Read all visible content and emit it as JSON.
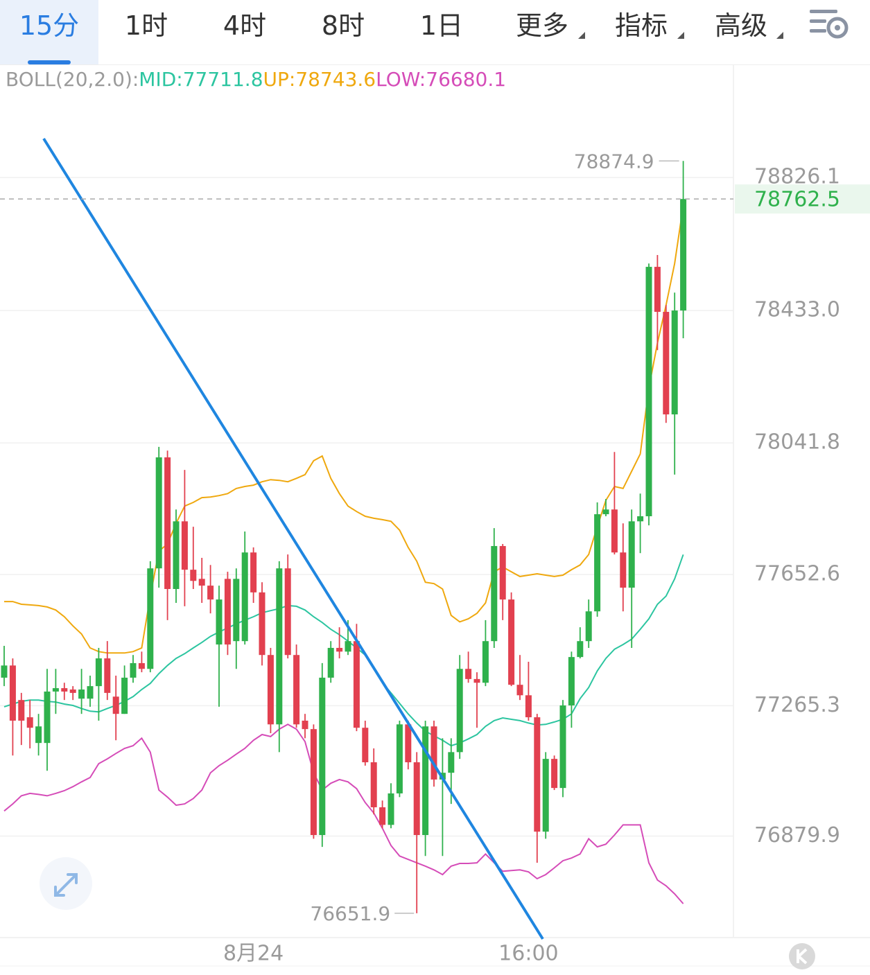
{
  "tabs": [
    "15分",
    "1时",
    "4时",
    "8时",
    "1日",
    "更多",
    "指标",
    "高级"
  ],
  "chart_data": {
    "type": "candlestick",
    "indicator_label": "BOLL(20,2.0):",
    "categories": [
      null,
      null,
      null,
      null,
      null,
      null,
      null,
      null,
      null,
      null,
      null,
      null,
      null,
      null,
      null,
      null,
      null,
      null,
      null,
      null,
      null,
      null,
      null,
      null,
      null,
      null,
      null,
      null,
      null,
      "8月24",
      null,
      null,
      null,
      null,
      null,
      null,
      null,
      null,
      null,
      null,
      null,
      null,
      null,
      null,
      null,
      null,
      null,
      null,
      null,
      null,
      null,
      null,
      null,
      null,
      null,
      null,
      null,
      null,
      null,
      null,
      null,
      "16:00",
      null,
      null,
      null,
      null,
      null,
      null,
      null,
      null,
      null,
      null,
      null,
      null,
      null,
      null,
      null,
      null,
      null,
      null
    ],
    "open": [
      77348,
      77384,
      77282,
      77231,
      77155,
      77155,
      77307,
      77317,
      77313,
      77286,
      77286,
      77323,
      77405,
      77292,
      77241,
      77348,
      77391,
      77374,
      77671,
      77999,
      77610,
      77810,
      77667,
      77640,
      77620,
      77446,
      77640,
      77456,
      77456,
      77718,
      77600,
      77415,
      77210,
      77671,
      77415,
      77221,
      77196,
      76883,
      77348,
      77436,
      77425,
      77456,
      77200,
      77098,
      76965,
      76913,
      77006,
      77210,
      77098,
      76883,
      77204,
      77047,
      77067,
      77128,
      77374,
      77344,
      77333,
      77456,
      77737,
      77579,
      77327,
      77296,
      77231,
      76893,
      77108,
      77022,
      77266,
      77409,
      77456,
      77544,
      77831,
      77845,
      77718,
      77614,
      77810,
      77825,
      78562,
      78429,
      78126,
      78433
    ],
    "high": [
      77442,
      77405,
      77303,
      77282,
      77241,
      77374,
      77374,
      77333,
      77323,
      77374,
      77354,
      77436,
      77456,
      77354,
      77384,
      77415,
      77425,
      77692,
      78030,
      78019,
      77845,
      77962,
      77794,
      77702,
      77681,
      77620,
      77661,
      77671,
      77780,
      77733,
      77630,
      77436,
      77692,
      77712,
      77446,
      77241,
      77210,
      77391,
      77456,
      77497,
      77518,
      77507,
      77221,
      77139,
      76985,
      77036,
      77221,
      77221,
      77128,
      77221,
      77221,
      77169,
      77169,
      77415,
      77425,
      77364,
      77518,
      77790,
      77743,
      77600,
      77415,
      77395,
      77241,
      77128,
      77118,
      77282,
      77425,
      77497,
      77579,
      77866,
      77876,
      78015,
      77804,
      77845,
      77892,
      78572,
      78597,
      78449,
      78486,
      78874.9
    ],
    "low": [
      77323,
      77118,
      77149,
      77139,
      77118,
      77073,
      77241,
      77282,
      77282,
      77241,
      77262,
      77221,
      77282,
      77163,
      77241,
      77333,
      77364,
      77364,
      77614,
      77518,
      77569,
      77559,
      77610,
      77569,
      77538,
      77262,
      77415,
      77374,
      77446,
      77569,
      77384,
      77184,
      77128,
      77405,
      77200,
      77169,
      76872,
      76848,
      77333,
      77405,
      77415,
      77190,
      77088,
      76944,
      76903,
      76903,
      76995,
      77077,
      76651.9,
      76821,
      77026,
      76821,
      76975,
      77108,
      77333,
      77200,
      77323,
      77436,
      77518,
      77323,
      77282,
      77221,
      76801,
      76872,
      77016,
      76995,
      77200,
      77405,
      77436,
      77528,
      77825,
      77712,
      77544,
      77436,
      77716,
      77798,
      78316,
      78101,
      77948,
      78351
    ],
    "close": [
      77384,
      77221,
      77221,
      77200,
      77204,
      77307,
      77317,
      77307,
      77303,
      77313,
      77323,
      77405,
      77303,
      77241,
      77348,
      77391,
      77374,
      77671,
      77999,
      77610,
      77810,
      77667,
      77634,
      77620,
      77579,
      77579,
      77446,
      77640,
      77718,
      77600,
      77415,
      77210,
      77671,
      77415,
      77210,
      77196,
      76883,
      77348,
      77436,
      77425,
      77456,
      77200,
      77098,
      76965,
      76913,
      77006,
      77210,
      77098,
      76883,
      77204,
      77047,
      77067,
      77128,
      77374,
      77344,
      77333,
      77456,
      77737,
      77579,
      77327,
      77296,
      77231,
      76893,
      77108,
      77022,
      77266,
      77409,
      77456,
      77544,
      77831,
      77845,
      77718,
      77614,
      77810,
      77825,
      78562,
      78429,
      78126,
      78433,
      78762.5
    ],
    "up_color": "#2fb14c",
    "down_color": "#e2404f",
    "series": [
      {
        "name": "MID:",
        "color": "#2cc5a0",
        "values": [
          77262,
          77270,
          77278,
          77282,
          77282,
          77278,
          77276,
          77270,
          77266,
          77257,
          77249,
          77247,
          77257,
          77266,
          77278,
          77292,
          77313,
          77331,
          77360,
          77384,
          77405,
          77419,
          77436,
          77452,
          77470,
          77483,
          77495,
          77507,
          77518,
          77528,
          77540,
          77546,
          77552,
          77561,
          77559,
          77548,
          77528,
          77511,
          77491,
          77475,
          77456,
          77436,
          77415,
          77374,
          77333,
          77303,
          77272,
          77241,
          77214,
          77190,
          77176,
          77163,
          77147,
          77155,
          77167,
          77180,
          77204,
          77221,
          77229,
          77225,
          77221,
          77214,
          77208,
          77210,
          77217,
          77225,
          77241,
          77286,
          77319,
          77368,
          77405,
          77432,
          77446,
          77462,
          77491,
          77522,
          77565,
          77589,
          77640,
          77711.8
        ]
      },
      {
        "name": "UP:",
        "color": "#efa80e",
        "values": [
          77573,
          77573,
          77565,
          77563,
          77561,
          77557,
          77548,
          77528,
          77501,
          77477,
          77436,
          77425,
          77421,
          77421,
          77421,
          77425,
          77436,
          77589,
          77722,
          77743,
          77804,
          77855,
          77866,
          77880,
          77882,
          77886,
          77892,
          77907,
          77913,
          77917,
          77927,
          77933,
          77931,
          77927,
          77937,
          77948,
          77989,
          78003,
          77937,
          77892,
          77855,
          77839,
          77825,
          77819,
          77815,
          77810,
          77784,
          77733,
          77692,
          77630,
          77626,
          77610,
          77532,
          77513,
          77522,
          77538,
          77569,
          77661,
          77675,
          77661,
          77647,
          77651,
          77655,
          77651,
          77647,
          77651,
          77667,
          77681,
          77712,
          77794,
          77872,
          77913,
          77907,
          77958,
          78009,
          78204,
          78337,
          78449,
          78572,
          78743.6
        ]
      },
      {
        "name": "LOW:",
        "color": "#d54cb8",
        "values": [
          76954,
          76975,
          76999,
          77006,
          77003,
          76999,
          77006,
          77014,
          77026,
          77040,
          77053,
          77094,
          77108,
          77124,
          77139,
          77147,
          77169,
          77128,
          77016,
          76995,
          76971,
          76975,
          76991,
          77016,
          77067,
          77088,
          77104,
          77122,
          77139,
          77163,
          77180,
          77174,
          77196,
          77210,
          77196,
          77159,
          77067,
          77016,
          77036,
          77047,
          77040,
          77020,
          76979,
          76948,
          76903,
          76852,
          76821,
          76811,
          76801,
          76791,
          76780,
          76766,
          76791,
          76799,
          76799,
          76801,
          76827,
          76801,
          76776,
          76778,
          76780,
          76774,
          76754,
          76766,
          76786,
          76807,
          76815,
          76827,
          76872,
          76848,
          76856,
          76883,
          76913,
          76913,
          76913,
          76801,
          76750,
          76733,
          76709,
          76680.1
        ]
      }
    ],
    "ylim": [
      76582,
      79156
    ],
    "yticks": [
      76879.9,
      77265.3,
      77652.6,
      78041.8,
      {
        "value": 78433,
        "label": "78433.0"
      },
      78826.1
    ],
    "grid": true
  }
}
